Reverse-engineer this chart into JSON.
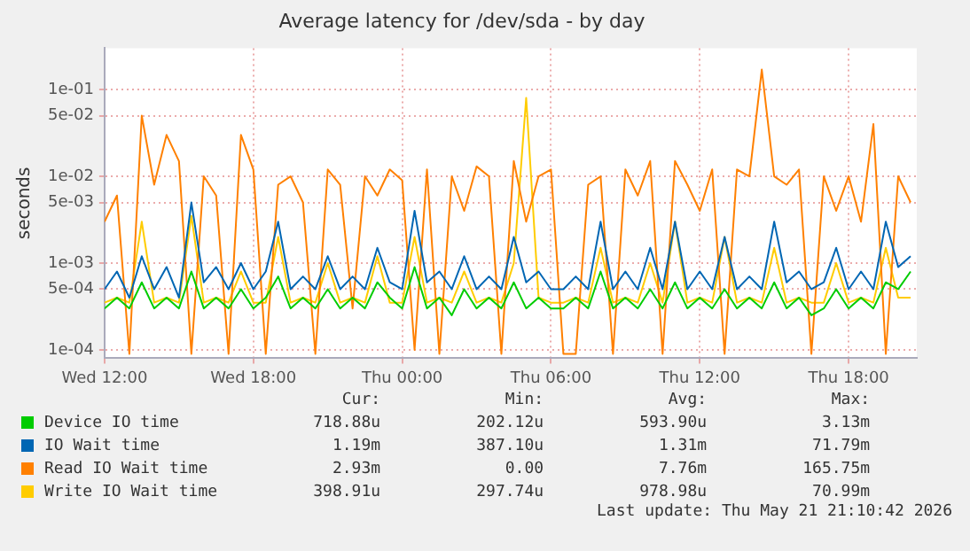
{
  "chart_data": {
    "type": "line",
    "title": "Average latency for /dev/sda - by day",
    "ylabel": "seconds",
    "log": true,
    "grid": true,
    "legend": "bottom",
    "marker": "none",
    "line_style": "solid",
    "x": [
      "2026-05-20T12:00",
      "2026-05-20T12:30",
      "2026-05-20T13:00",
      "2026-05-20T13:30",
      "2026-05-20T14:00",
      "2026-05-20T14:30",
      "2026-05-20T15:00",
      "2026-05-20T15:30",
      "2026-05-20T16:00",
      "2026-05-20T16:30",
      "2026-05-20T17:00",
      "2026-05-20T17:30",
      "2026-05-20T18:00",
      "2026-05-20T18:30",
      "2026-05-20T19:00",
      "2026-05-20T19:30",
      "2026-05-20T20:00",
      "2026-05-20T20:30",
      "2026-05-20T21:00",
      "2026-05-20T21:30",
      "2026-05-20T22:00",
      "2026-05-20T22:30",
      "2026-05-20T23:00",
      "2026-05-20T23:30",
      "2026-05-21T00:00",
      "2026-05-21T00:30",
      "2026-05-21T01:00",
      "2026-05-21T01:30",
      "2026-05-21T02:00",
      "2026-05-21T02:30",
      "2026-05-21T03:00",
      "2026-05-21T03:30",
      "2026-05-21T04:00",
      "2026-05-21T04:30",
      "2026-05-21T05:00",
      "2026-05-21T05:30",
      "2026-05-21T06:00",
      "2026-05-21T06:30",
      "2026-05-21T07:00",
      "2026-05-21T07:30",
      "2026-05-21T08:00",
      "2026-05-21T08:30",
      "2026-05-21T09:00",
      "2026-05-21T09:30",
      "2026-05-21T10:00",
      "2026-05-21T10:30",
      "2026-05-21T11:00",
      "2026-05-21T11:30",
      "2026-05-21T12:00",
      "2026-05-21T12:30",
      "2026-05-21T13:00",
      "2026-05-21T13:30",
      "2026-05-21T14:00",
      "2026-05-21T14:30",
      "2026-05-21T15:00",
      "2026-05-21T15:30",
      "2026-05-21T16:00",
      "2026-05-21T16:30",
      "2026-05-21T17:00",
      "2026-05-21T17:30",
      "2026-05-21T18:00",
      "2026-05-21T18:30",
      "2026-05-21T19:00",
      "2026-05-21T19:30",
      "2026-05-21T20:00",
      "2026-05-21T20:30"
    ],
    "xlim": [
      "2026-05-20T12:00",
      "2026-05-21T20:45"
    ],
    "xticks": [
      {
        "value": "2026-05-20T12:00",
        "label": "Wed 12:00"
      },
      {
        "value": "2026-05-20T18:00",
        "label": "Wed 18:00"
      },
      {
        "value": "2026-05-21T00:00",
        "label": "Thu 00:00"
      },
      {
        "value": "2026-05-21T06:00",
        "label": "Thu 06:00"
      },
      {
        "value": "2026-05-21T12:00",
        "label": "Thu 12:00"
      },
      {
        "value": "2026-05-21T18:00",
        "label": "Thu 18:00"
      }
    ],
    "ylim": [
      8e-05,
      0.3
    ],
    "yticks": [
      {
        "value": 0.0001,
        "label": "1e-04"
      },
      {
        "value": 0.0005,
        "label": "5e-04"
      },
      {
        "value": 0.001,
        "label": "1e-03"
      },
      {
        "value": 0.005,
        "label": "5e-03"
      },
      {
        "value": 0.01,
        "label": "1e-02"
      },
      {
        "value": 0.05,
        "label": "5e-02"
      },
      {
        "value": 0.1,
        "label": "1e-01"
      }
    ],
    "series": [
      {
        "name": "Device IO time",
        "color": "#00cc00",
        "values": [
          0.0003,
          0.0004,
          0.0003,
          0.0006,
          0.0003,
          0.0004,
          0.0003,
          0.0008,
          0.0003,
          0.0004,
          0.0003,
          0.0005,
          0.0003,
          0.0004,
          0.0007,
          0.0003,
          0.0004,
          0.0003,
          0.0005,
          0.0003,
          0.0004,
          0.0003,
          0.0006,
          0.0004,
          0.0003,
          0.0009,
          0.0003,
          0.0004,
          0.00025,
          0.0005,
          0.0003,
          0.0004,
          0.0003,
          0.0006,
          0.0003,
          0.0004,
          0.0003,
          0.0003,
          0.0004,
          0.0003,
          0.0008,
          0.0003,
          0.0004,
          0.0003,
          0.0005,
          0.0003,
          0.0006,
          0.0003,
          0.0004,
          0.0003,
          0.0005,
          0.0003,
          0.0004,
          0.0003,
          0.0006,
          0.0003,
          0.0004,
          0.00025,
          0.0003,
          0.0005,
          0.0003,
          0.0004,
          0.0003,
          0.0006,
          0.0005,
          0.0008
        ]
      },
      {
        "name": "IO Wait time",
        "color": "#0066b3",
        "values": [
          0.0005,
          0.0008,
          0.0004,
          0.0012,
          0.0005,
          0.0009,
          0.0004,
          0.005,
          0.0006,
          0.0009,
          0.0005,
          0.001,
          0.0005,
          0.0008,
          0.003,
          0.0005,
          0.0007,
          0.0005,
          0.0012,
          0.0005,
          0.0007,
          0.0005,
          0.0015,
          0.0006,
          0.0005,
          0.004,
          0.0006,
          0.0008,
          0.0005,
          0.0012,
          0.0005,
          0.0007,
          0.0005,
          0.002,
          0.0006,
          0.0008,
          0.0005,
          0.0005,
          0.0007,
          0.0005,
          0.003,
          0.0005,
          0.0008,
          0.0005,
          0.0015,
          0.0005,
          0.003,
          0.0005,
          0.0008,
          0.0005,
          0.002,
          0.0005,
          0.0007,
          0.0005,
          0.003,
          0.0006,
          0.0008,
          0.0005,
          0.0006,
          0.0015,
          0.0005,
          0.0008,
          0.0005,
          0.003,
          0.0009,
          0.0012
        ]
      },
      {
        "name": "Read IO Wait time",
        "color": "#ff8000",
        "values": [
          0.003,
          0.006,
          9e-05,
          0.05,
          0.008,
          0.03,
          0.015,
          9e-05,
          0.01,
          0.006,
          9e-05,
          0.03,
          0.012,
          9e-05,
          0.008,
          0.01,
          0.005,
          9e-05,
          0.012,
          0.008,
          0.0003,
          0.01,
          0.006,
          0.012,
          0.009,
          0.0001,
          0.012,
          9e-05,
          0.01,
          0.004,
          0.013,
          0.01,
          9e-05,
          0.015,
          0.003,
          0.01,
          0.012,
          9e-05,
          9e-05,
          0.008,
          0.01,
          9e-05,
          0.012,
          0.006,
          0.015,
          9e-05,
          0.015,
          0.008,
          0.004,
          0.012,
          9e-05,
          0.012,
          0.01,
          0.17,
          0.01,
          0.008,
          0.012,
          9e-05,
          0.01,
          0.004,
          0.01,
          0.003,
          0.04,
          9e-05,
          0.01,
          0.005
        ]
      },
      {
        "name": "Write IO Wait time",
        "color": "#ffcc00",
        "values": [
          0.00035,
          0.0004,
          0.00035,
          0.003,
          0.00035,
          0.0004,
          0.00035,
          0.0035,
          0.00035,
          0.0004,
          0.00035,
          0.0008,
          0.00035,
          0.00035,
          0.002,
          0.00035,
          0.0004,
          0.00035,
          0.001,
          0.00035,
          0.0004,
          0.00035,
          0.0012,
          0.00035,
          0.00035,
          0.002,
          0.00035,
          0.0004,
          0.00035,
          0.0008,
          0.00035,
          0.0004,
          0.00035,
          0.001,
          0.08,
          0.0004,
          0.00035,
          0.00035,
          0.0004,
          0.00035,
          0.0015,
          0.00035,
          0.0004,
          0.00035,
          0.001,
          0.00035,
          0.003,
          0.00035,
          0.0004,
          0.00035,
          0.002,
          0.00035,
          0.0004,
          0.00035,
          0.0015,
          0.00035,
          0.0004,
          0.00035,
          0.00035,
          0.001,
          0.00035,
          0.0004,
          0.00035,
          0.0015,
          0.0004,
          0.0004
        ]
      }
    ],
    "annotations": [
      "Cur:",
      "Min:",
      "Avg:",
      "Max:",
      "718.88u",
      "202.12u",
      "593.90u",
      "3.13m",
      "1.19m",
      "387.10u",
      "1.31m",
      "71.79m",
      "2.93m",
      "0.00",
      "7.76m",
      "165.75m",
      "398.91u",
      "297.74u",
      "978.98u",
      "70.99m",
      "Last update: Thu May 21 21:10:42 2026"
    ]
  }
}
